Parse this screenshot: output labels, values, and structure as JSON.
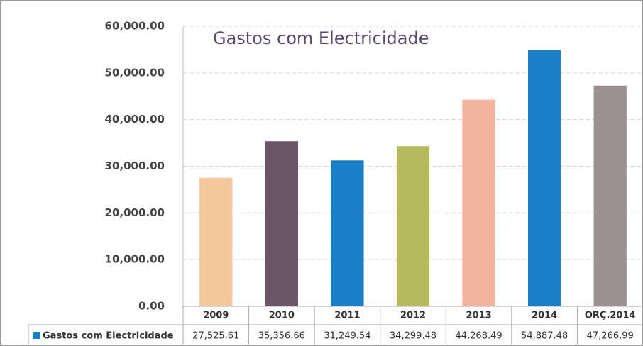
{
  "chart_data": {
    "type": "bar",
    "title": "Gastos com Electricidade",
    "categories": [
      "2009",
      "2010",
      "2011",
      "2012",
      "2013",
      "2014",
      "ORÇ.2014"
    ],
    "series": [
      {
        "name": "Gastos com Electricidade",
        "color": "#1a7fc8",
        "values": [
          27525.61,
          35356.66,
          31249.54,
          34299.48,
          44268.49,
          54887.48,
          47266.99
        ],
        "value_labels": [
          "27,525.61",
          "35,356.66",
          "31,249.54",
          "34,299.48",
          "44,268.49",
          "54,887.48",
          "47,266.99"
        ]
      }
    ],
    "colors": [
      "#f0c89c",
      "#6a5666",
      "#1a7fc8",
      "#b5b95c",
      "#f2b49e",
      "#1a7fc8",
      "#9c9090"
    ],
    "ylim": [
      0,
      60000
    ],
    "yticks": [
      {
        "value": 0,
        "label": "0.00"
      },
      {
        "value": 10000,
        "label": "10,000.00"
      },
      {
        "value": 20000,
        "label": "20,000.00"
      },
      {
        "value": 30000,
        "label": "30,000.00"
      },
      {
        "value": 40000,
        "label": "40,000.00"
      },
      {
        "value": 50000,
        "label": "50,000.00"
      },
      {
        "value": 60000,
        "label": "60,000.00"
      }
    ],
    "grid": true
  }
}
